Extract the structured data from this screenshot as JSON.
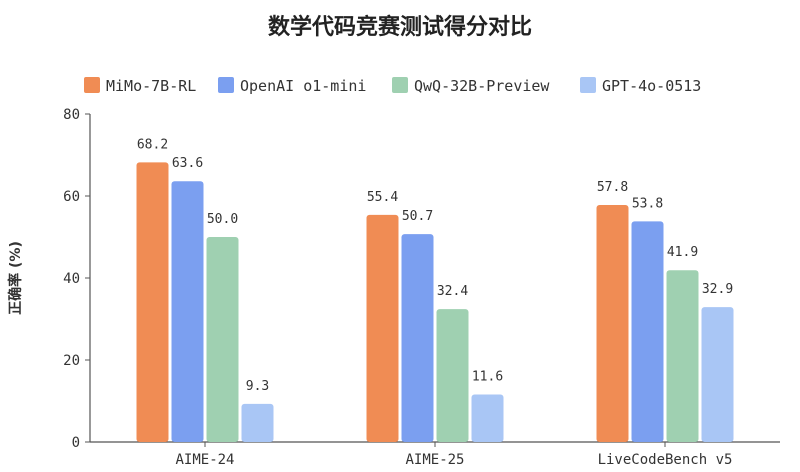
{
  "chart_data": {
    "type": "bar",
    "title": "数学代码竞赛测试得分对比",
    "ylabel": "正确率 (%)",
    "xlabel": "",
    "ylim": [
      0,
      80
    ],
    "yticks": [
      0,
      20,
      40,
      60,
      80
    ],
    "grid": false,
    "legend_position": "top",
    "categories": [
      "AIME-24",
      "AIME-25",
      "LiveCodeBench v5"
    ],
    "series": [
      {
        "name": "MiMo-7B-RL",
        "color": "#f08c54",
        "values": [
          68.2,
          55.4,
          57.8
        ]
      },
      {
        "name": "OpenAI o1-mini",
        "color": "#7b9ff0",
        "values": [
          63.6,
          50.7,
          53.8
        ]
      },
      {
        "name": "QwQ-32B-Preview",
        "color": "#9fd0b1",
        "values": [
          50.0,
          32.4,
          41.9
        ]
      },
      {
        "name": "GPT-4o-0513",
        "color": "#a9c6f5",
        "values": [
          9.3,
          11.6,
          32.9
        ]
      }
    ]
  }
}
